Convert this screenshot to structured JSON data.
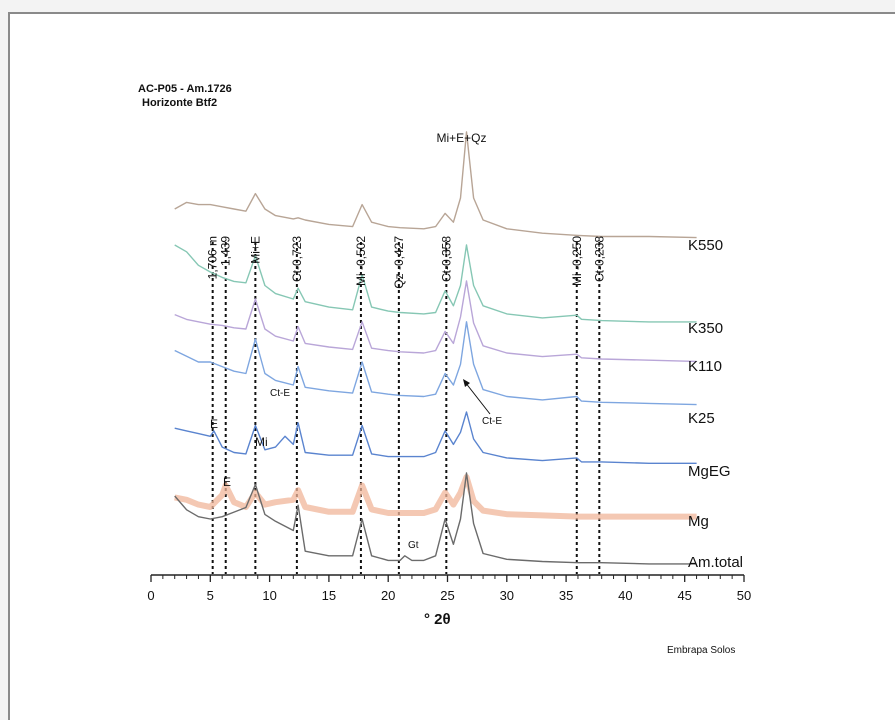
{
  "chart_data": {
    "type": "line",
    "title": [
      "AC-P05 - Am.1726",
      "Horizonte  Btf2"
    ],
    "xlabel": "° 2θ",
    "xlim": [
      0,
      50
    ],
    "xticks": [
      0,
      5,
      10,
      15,
      20,
      25,
      30,
      35,
      40,
      45,
      50
    ],
    "y_axis": "none",
    "grid": false,
    "legend": "series labels at right end of each trace",
    "series": [
      {
        "name": "K550",
        "color": "#b8a596",
        "x": [
          2,
          3,
          4,
          5,
          6,
          7,
          8,
          8.8,
          9.6,
          10.5,
          12,
          12.4,
          13,
          15,
          17,
          17.8,
          18.6,
          20,
          21,
          23,
          24,
          24.8,
          25.5,
          26.1,
          26.6,
          27.2,
          28,
          30,
          33,
          36,
          38,
          42,
          46
        ],
        "y": [
          30,
          36,
          34,
          34,
          32,
          30,
          28,
          44,
          30,
          24,
          21,
          22,
          20,
          16,
          14,
          34,
          18,
          14,
          13,
          12,
          14,
          26,
          18,
          40,
          100,
          40,
          20,
          12,
          8,
          6,
          5,
          5,
          4
        ]
      },
      {
        "name": "K350",
        "color": "#86c7b4",
        "x": [
          2,
          3,
          4,
          5,
          6,
          7,
          8,
          8.8,
          9.6,
          10.5,
          12,
          12.4,
          13,
          15,
          17,
          17.8,
          18.6,
          20,
          21,
          23,
          24,
          24.8,
          25.5,
          26.1,
          26.6,
          27.2,
          28,
          30,
          33,
          35.9,
          36.3,
          38,
          42,
          46
        ],
        "y": [
          60,
          55,
          45,
          40,
          36,
          33,
          32,
          52,
          30,
          24,
          20,
          28,
          18,
          14,
          12,
          38,
          14,
          11,
          10,
          9,
          10,
          26,
          15,
          30,
          60,
          30,
          15,
          9,
          6,
          8,
          5,
          4,
          3,
          3
        ]
      },
      {
        "name": "K110",
        "color": "#b9a6d8",
        "x": [
          2,
          3,
          4,
          5,
          6,
          7,
          8,
          8.8,
          9.6,
          10.5,
          12,
          12.4,
          13,
          15,
          17,
          17.8,
          18.6,
          20,
          21,
          23,
          24,
          24.8,
          25.5,
          26.1,
          26.6,
          27.2,
          28,
          30,
          33,
          35.9,
          36.3,
          38,
          42,
          46
        ],
        "y": [
          42,
          38,
          36,
          34,
          33,
          31,
          30,
          55,
          30,
          24,
          20,
          32,
          18,
          15,
          13,
          36,
          14,
          12,
          11,
          10,
          12,
          28,
          18,
          40,
          70,
          35,
          16,
          10,
          7,
          9,
          6,
          5,
          4,
          3
        ]
      },
      {
        "name": "K25",
        "color": "#7ea6e0",
        "x": [
          2,
          3,
          4,
          5,
          6,
          7,
          8,
          8.8,
          9.6,
          10.5,
          12,
          12.4,
          13,
          15,
          17,
          17.8,
          18.6,
          20,
          21,
          23,
          24,
          24.8,
          25.5,
          26.1,
          26.6,
          27.2,
          28,
          30,
          33,
          35.9,
          36.3,
          38,
          42,
          46
        ],
        "y": [
          50,
          45,
          40,
          40,
          36,
          32,
          30,
          60,
          30,
          24,
          20,
          36,
          18,
          15,
          13,
          40,
          14,
          12,
          11,
          10,
          12,
          30,
          20,
          38,
          75,
          38,
          16,
          10,
          7,
          10,
          6,
          5,
          4,
          3
        ]
      },
      {
        "name": "MgEG",
        "color": "#5a84cf",
        "x": [
          2,
          3,
          4,
          5,
          5.3,
          6,
          7,
          8,
          8.8,
          9.6,
          10.5,
          11.3,
          12,
          12.4,
          13,
          15,
          17,
          17.8,
          18.6,
          20,
          21,
          23,
          24,
          24.8,
          25.5,
          26.1,
          26.6,
          27.2,
          28,
          30,
          33,
          35.9,
          36.3,
          38,
          42,
          46
        ],
        "y": [
          28,
          26,
          24,
          22,
          26,
          14,
          10,
          9,
          30,
          12,
          14,
          22,
          16,
          32,
          10,
          8,
          8,
          30,
          9,
          7,
          7,
          7,
          10,
          26,
          16,
          25,
          40,
          20,
          10,
          6,
          4,
          6,
          3,
          3,
          2,
          2
        ]
      },
      {
        "name": "Mg",
        "color": "#f0b59a",
        "x": [
          2,
          3,
          4,
          5,
          6,
          6.3,
          7,
          8,
          8.8,
          9.6,
          10.5,
          12,
          12.4,
          13,
          15,
          17,
          17.8,
          18.6,
          20,
          21,
          23,
          24,
          24.8,
          25.5,
          26.1,
          26.6,
          27.2,
          28,
          30,
          33,
          36,
          38,
          42,
          46
        ],
        "y": [
          18,
          16,
          12,
          10,
          20,
          28,
          14,
          10,
          22,
          12,
          14,
          16,
          24,
          10,
          6,
          6,
          28,
          8,
          5,
          5,
          5,
          8,
          22,
          12,
          22,
          35,
          15,
          7,
          4,
          3,
          2,
          2,
          2,
          2
        ]
      },
      {
        "name": "Am.total",
        "color": "#6b6b6b",
        "x": [
          2,
          3,
          4,
          5,
          6,
          7,
          8,
          8.8,
          9.6,
          10.5,
          12,
          12.4,
          13,
          15,
          17,
          17.8,
          18.6,
          20,
          21,
          21.4,
          22,
          23,
          24,
          24.8,
          25.5,
          26.1,
          26.6,
          27.2,
          28,
          30,
          33,
          36,
          38,
          42,
          46
        ],
        "y": [
          60,
          48,
          42,
          40,
          42,
          46,
          50,
          70,
          44,
          38,
          30,
          52,
          12,
          8,
          8,
          40,
          8,
          4,
          4,
          8,
          4,
          4,
          8,
          40,
          18,
          40,
          80,
          36,
          10,
          5,
          3,
          2,
          2,
          1,
          1
        ]
      }
    ],
    "peak_markers": [
      {
        "label": "1,706 m",
        "x": 5.2
      },
      {
        "label": "1,439",
        "x": 6.3
      },
      {
        "label": "Mi+E",
        "x": 8.8
      },
      {
        "label": "Ct-0,723",
        "x": 12.3
      },
      {
        "label": "Mi -0,502",
        "x": 17.7
      },
      {
        "label": "Qz -0,427",
        "x": 20.9
      },
      {
        "label": "Ct-0,358",
        "x": 24.9
      },
      {
        "label": "Mi+E+Qz",
        "x": 26.6
      },
      {
        "label": "Mi -0,250",
        "x": 35.9
      },
      {
        "label": "Ct-0,238",
        "x": 37.8
      }
    ],
    "annotations": [
      "E",
      "E",
      "Mi",
      "Ct-E",
      "Ct-E",
      "Gt"
    ]
  },
  "credit": "Embrapa Solos"
}
